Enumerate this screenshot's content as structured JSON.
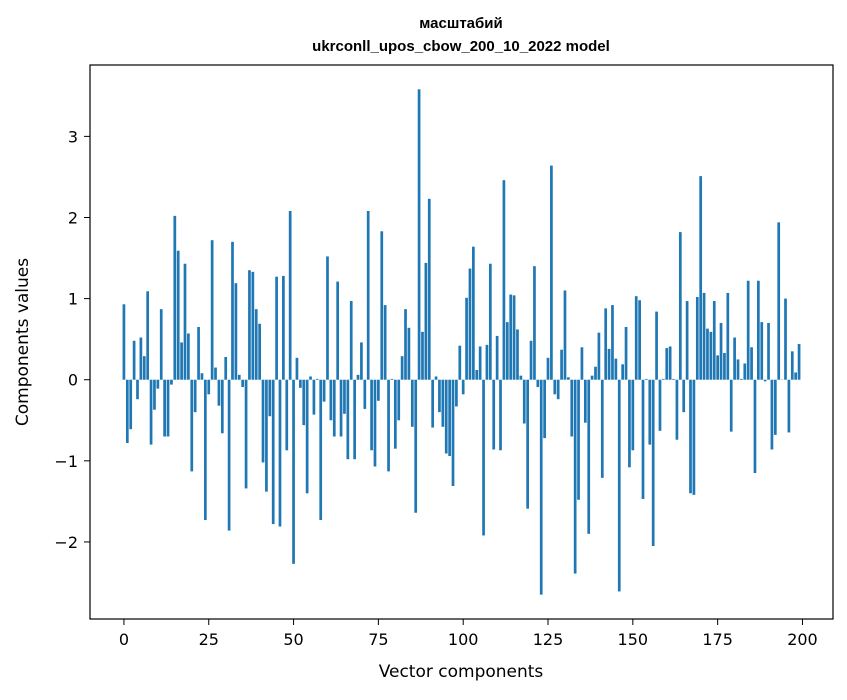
{
  "chart_data": {
    "type": "bar",
    "title_line1": "масштабий",
    "title_line2": "ukrconll_upos_cbow_200_10_2022 model",
    "xlabel": "Vector components",
    "ylabel": "Components values",
    "xlim": [
      -10,
      209
    ],
    "ylim": [
      -2.95,
      3.88
    ],
    "xticks": [
      0,
      25,
      50,
      75,
      100,
      125,
      150,
      175,
      200
    ],
    "yticks": [
      -2,
      -1,
      0,
      1,
      2,
      3
    ],
    "xtick_labels": [
      "0",
      "25",
      "50",
      "75",
      "100",
      "125",
      "150",
      "175",
      "200"
    ],
    "ytick_labels": [
      "−2",
      "−1",
      "0",
      "1",
      "2",
      "3"
    ],
    "bar_color": "#1f77b4",
    "grid": false,
    "values": [
      0.93,
      -0.78,
      -0.61,
      0.48,
      -0.24,
      0.52,
      0.29,
      1.09,
      -0.8,
      -0.37,
      -0.11,
      0.87,
      -0.7,
      -0.7,
      -0.06,
      2.02,
      1.59,
      0.46,
      1.43,
      0.57,
      -1.13,
      -0.4,
      0.65,
      0.08,
      -1.73,
      -0.18,
      1.72,
      0.15,
      -0.32,
      -0.66,
      0.28,
      -1.86,
      1.7,
      1.19,
      0.06,
      -0.09,
      -1.34,
      1.35,
      1.33,
      0.87,
      0.69,
      -1.02,
      -1.38,
      -0.45,
      -1.78,
      1.27,
      -1.81,
      1.28,
      -0.87,
      2.08,
      -2.27,
      0.27,
      -0.1,
      -0.56,
      -1.4,
      0.04,
      -0.43,
      0.01,
      -1.73,
      -0.27,
      1.52,
      -0.5,
      -0.7,
      1.21,
      -0.7,
      -0.42,
      -0.98,
      0.97,
      -0.98,
      0.06,
      0.46,
      -0.36,
      2.08,
      -0.87,
      -1.07,
      -0.26,
      1.83,
      0.92,
      -1.13,
      0.01,
      -0.85,
      -0.5,
      0.29,
      0.87,
      0.64,
      -0.58,
      -1.64,
      3.58,
      0.59,
      1.44,
      2.23,
      -0.59,
      0.04,
      -0.4,
      -0.58,
      -0.91,
      -0.94,
      -1.31,
      -0.33,
      0.42,
      -0.18,
      1.01,
      1.37,
      1.64,
      0.12,
      0.41,
      -1.92,
      0.43,
      1.43,
      -0.86,
      0.54,
      -0.87,
      2.46,
      0.71,
      1.05,
      1.04,
      0.62,
      0.05,
      -0.54,
      -1.59,
      0.48,
      1.4,
      -0.09,
      -2.65,
      -0.72,
      0.27,
      2.64,
      -0.18,
      -0.24,
      0.37,
      1.1,
      0.03,
      -0.7,
      -2.39,
      -1.48,
      0.4,
      -0.53,
      -1.9,
      0.05,
      0.16,
      0.58,
      -1.21,
      0.88,
      0.38,
      0.92,
      0.26,
      -2.61,
      0.19,
      0.65,
      -1.08,
      -0.87,
      1.03,
      0.98,
      -1.47,
      0.01,
      -0.8,
      -2.05,
      0.84,
      -0.63,
      0.01,
      0.39,
      0.41,
      0.01,
      -0.74,
      1.82,
      -0.4,
      0.97,
      -1.4,
      -1.42,
      1.02,
      2.51,
      1.07,
      0.63,
      0.59,
      0.97,
      0.3,
      0.7,
      0.33,
      1.07,
      -0.64,
      0.52,
      0.25,
      0.01,
      0.2,
      1.22,
      0.4,
      -1.15,
      1.22,
      0.71,
      -0.02,
      0.7,
      -0.86,
      -0.68,
      1.94,
      0.0,
      1.0,
      -0.65,
      0.35,
      0.09,
      0.44
    ]
  }
}
